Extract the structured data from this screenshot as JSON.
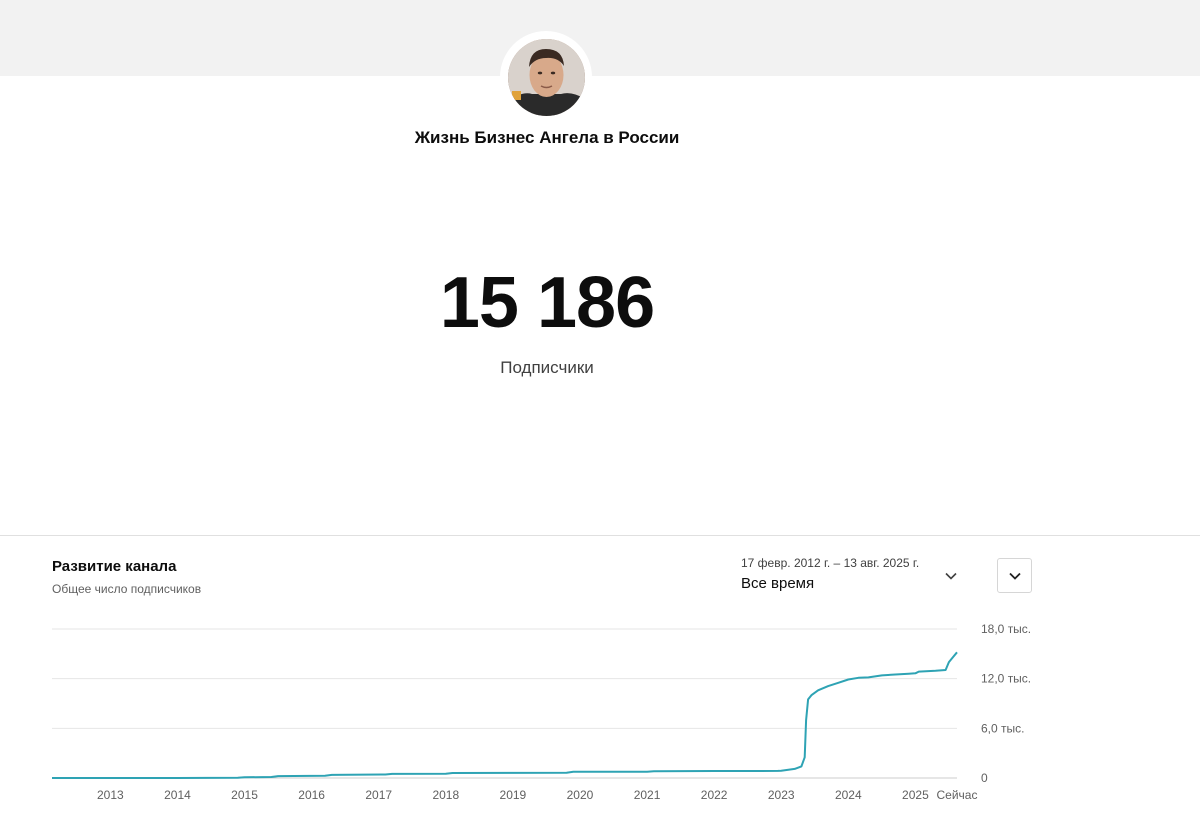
{
  "channel": {
    "name": "Жизнь Бизнес Ангела в России"
  },
  "subscribers": {
    "count": "15 186",
    "label": "Подписчики"
  },
  "panel": {
    "title": "Развитие канала",
    "subtitle": "Общее число подписчиков",
    "date_range": "17 февр. 2012 г. – 13 авг. 2025 г.",
    "period": "Все время"
  },
  "colors": {
    "line": "#2ea3b4",
    "grid": "#e6e6e6",
    "axis": "#cccccc"
  },
  "icons": {
    "period": "chevron-down-icon",
    "expand": "chevron-down-icon"
  },
  "chart_data": {
    "type": "line",
    "xlabel": "",
    "ylabel": "",
    "x_range": [
      2012.13,
      2025.62
    ],
    "ylim": [
      0,
      18000
    ],
    "x_ticks": [
      {
        "value": 2013,
        "label": "2013"
      },
      {
        "value": 2014,
        "label": "2014"
      },
      {
        "value": 2015,
        "label": "2015"
      },
      {
        "value": 2016,
        "label": "2016"
      },
      {
        "value": 2017,
        "label": "2017"
      },
      {
        "value": 2018,
        "label": "2018"
      },
      {
        "value": 2019,
        "label": "2019"
      },
      {
        "value": 2020,
        "label": "2020"
      },
      {
        "value": 2021,
        "label": "2021"
      },
      {
        "value": 2022,
        "label": "2022"
      },
      {
        "value": 2023,
        "label": "2023"
      },
      {
        "value": 2024,
        "label": "2024"
      },
      {
        "value": 2025,
        "label": "2025"
      },
      {
        "value": 2025.62,
        "label": "Сейчас"
      }
    ],
    "y_ticks": [
      {
        "value": 0,
        "label": "0"
      },
      {
        "value": 6000,
        "label": "6,0 тыс."
      },
      {
        "value": 12000,
        "label": "12,0 тыс."
      },
      {
        "value": 18000,
        "label": "18,0 тыс."
      }
    ],
    "grid": true,
    "series": [
      {
        "points": [
          [
            2012.13,
            0
          ],
          [
            2014.0,
            0
          ],
          [
            2014.9,
            20
          ],
          [
            2015.0,
            80
          ],
          [
            2015.4,
            120
          ],
          [
            2015.5,
            230
          ],
          [
            2016.2,
            260
          ],
          [
            2016.3,
            380
          ],
          [
            2017.1,
            420
          ],
          [
            2017.2,
            500
          ],
          [
            2018.0,
            520
          ],
          [
            2018.1,
            600
          ],
          [
            2019.0,
            620
          ],
          [
            2019.8,
            630
          ],
          [
            2019.9,
            750
          ],
          [
            2021.0,
            760
          ],
          [
            2021.1,
            820
          ],
          [
            2022.0,
            840
          ],
          [
            2022.5,
            850
          ],
          [
            2022.95,
            860
          ],
          [
            2023.0,
            880
          ],
          [
            2023.2,
            1100
          ],
          [
            2023.3,
            1400
          ],
          [
            2023.35,
            2500
          ],
          [
            2023.37,
            7000
          ],
          [
            2023.4,
            9500
          ],
          [
            2023.45,
            10000
          ],
          [
            2023.55,
            10600
          ],
          [
            2023.7,
            11100
          ],
          [
            2023.85,
            11500
          ],
          [
            2024.0,
            11900
          ],
          [
            2024.15,
            12100
          ],
          [
            2024.3,
            12150
          ],
          [
            2024.5,
            12400
          ],
          [
            2024.7,
            12500
          ],
          [
            2024.9,
            12600
          ],
          [
            2025.0,
            12650
          ],
          [
            2025.05,
            12850
          ],
          [
            2025.3,
            12950
          ],
          [
            2025.45,
            13050
          ],
          [
            2025.5,
            14000
          ],
          [
            2025.56,
            14600
          ],
          [
            2025.62,
            15186
          ]
        ]
      }
    ]
  }
}
